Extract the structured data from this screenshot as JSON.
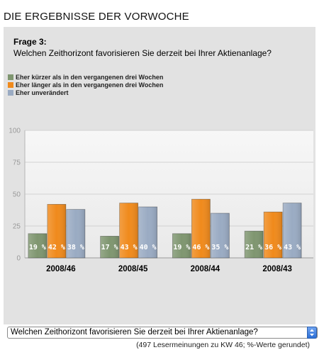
{
  "page": {
    "heading": "DIE ERGEBNISSE DER VORWOCHE"
  },
  "question": {
    "label": "Frage 3:",
    "text": "Welchen Zeithorizont favorisieren Sie derzeit bei Ihrer Aktienanlage?"
  },
  "legend": [
    {
      "label": "Eher kürzer als in den vergangenen drei Wochen",
      "color": "#7f9670"
    },
    {
      "label": "Eher länger als in den vergangenen drei Wochen",
      "color": "#f08a1c"
    },
    {
      "label": "Eher unverändert",
      "color": "#9aabc3"
    }
  ],
  "chart_data": {
    "type": "bar",
    "categories": [
      "2008/46",
      "2008/45",
      "2008/44",
      "2008/43"
    ],
    "series": [
      {
        "name": "Eher kürzer als in den vergangenen drei Wochen",
        "values": [
          19,
          17,
          19,
          21
        ],
        "labels": [
          "19 %",
          "17 %",
          "19 %",
          "21 %"
        ],
        "color": "#7f9670"
      },
      {
        "name": "Eher länger als in den vergangenen drei Wochen",
        "values": [
          42,
          43,
          46,
          36
        ],
        "labels": [
          "42 %",
          "43 %",
          "46 %",
          "36 %"
        ],
        "color": "#f08a1c"
      },
      {
        "name": "Eher unverändert",
        "values": [
          38,
          40,
          35,
          43
        ],
        "labels": [
          "38 %",
          "40 %",
          "35 %",
          "43 %"
        ],
        "color": "#9aabc3"
      }
    ],
    "yticks": [
      "0",
      "25",
      "50",
      "75",
      "100"
    ],
    "ylim": [
      0,
      100
    ],
    "grid": true
  },
  "selector": {
    "value": "Welchen Zeithorizont favorisieren Sie derzeit bei Ihrer Aktienanlage?"
  },
  "footnote": "(497 Lesermeinungen zu KW 46; %-Werte gerundet)"
}
